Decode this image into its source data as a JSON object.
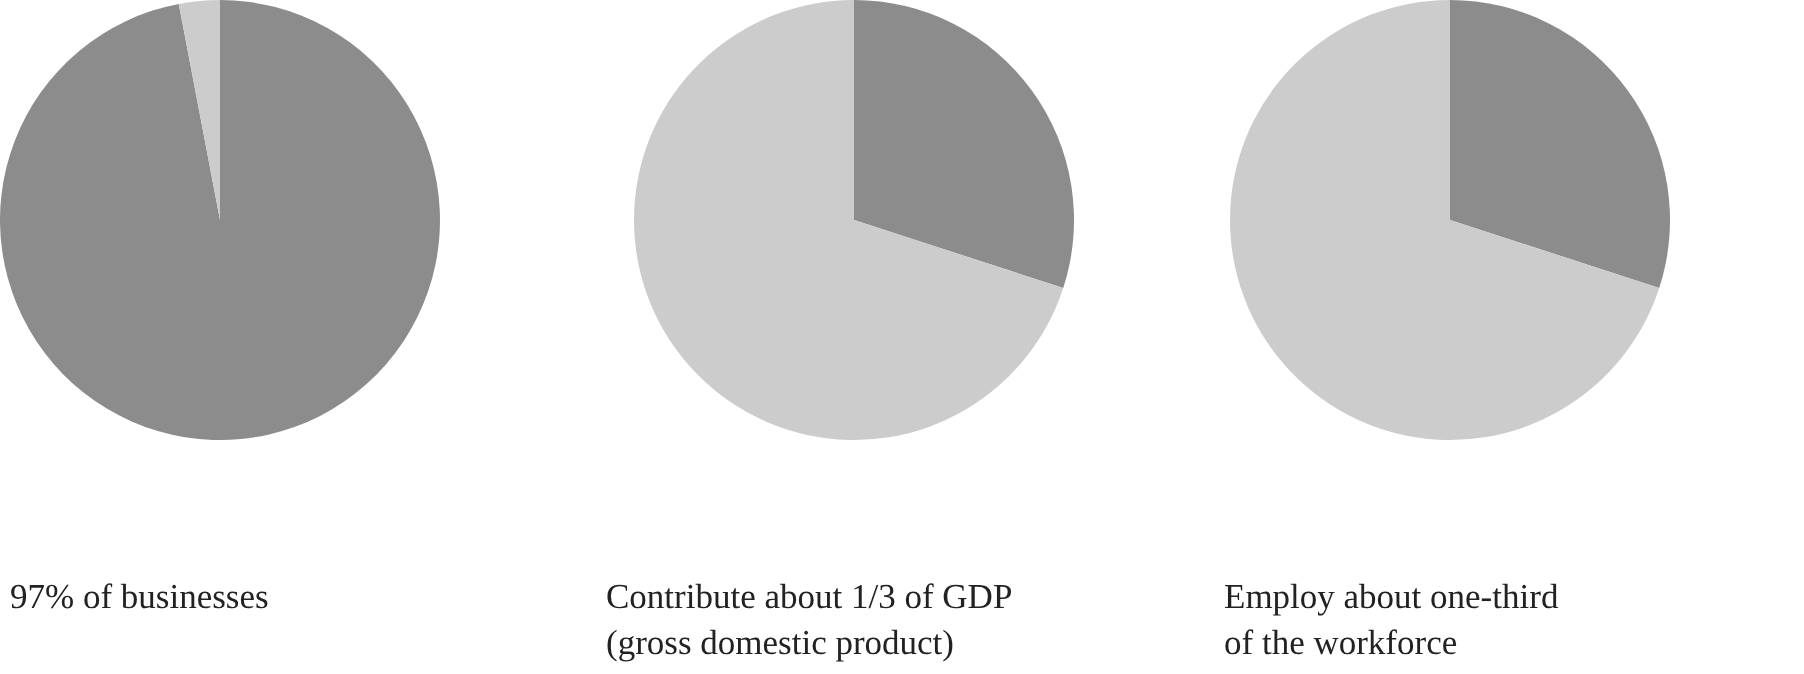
{
  "chart_data": [
    {
      "type": "pie",
      "title": "97% of businesses",
      "categories": [
        null,
        null
      ],
      "values": [
        97,
        3
      ],
      "colors": [
        "#8c8c8c",
        "#cccccc"
      ]
    },
    {
      "type": "pie",
      "title": "Contribute about 1/3 of GDP\n(gross domestic product)",
      "categories": [
        null,
        null
      ],
      "values": [
        30,
        70
      ],
      "colors": [
        "#8c8c8c",
        "#cccccc"
      ]
    },
    {
      "type": "pie",
      "title": "Employ about one-third\nof the workforce",
      "categories": [
        null,
        null
      ],
      "values": [
        30,
        70
      ],
      "colors": [
        "#8c8c8c",
        "#cccccc"
      ]
    }
  ]
}
